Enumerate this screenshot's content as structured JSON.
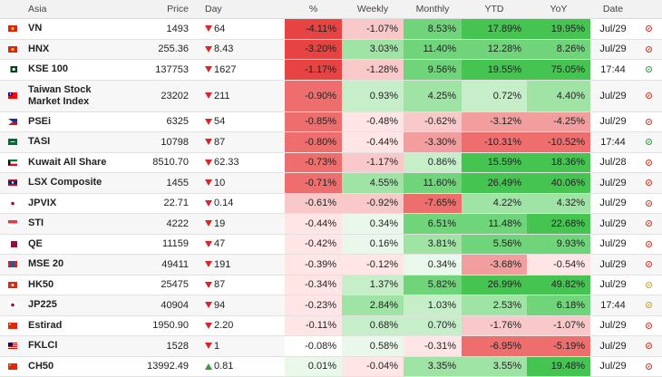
{
  "headers": {
    "name": "Asia",
    "price": "Price",
    "day": "Day",
    "pct": "%",
    "weekly": "Weekly",
    "monthly": "Monthly",
    "ytd": "YTD",
    "yoy": "YoY",
    "date": "Date"
  },
  "rows": [
    {
      "flag": "vn",
      "name": "VN",
      "price": "1493",
      "dir": "down",
      "day": "64",
      "pct": "-4.11%",
      "weekly": "-1.07%",
      "monthly": "8.53%",
      "ytd": "17.89%",
      "yoy": "19.95%",
      "date": "Jul/29",
      "status": "closed"
    },
    {
      "flag": "vn",
      "name": "HNX",
      "price": "255.36",
      "dir": "down",
      "day": "8.43",
      "pct": "-3.20%",
      "weekly": "3.03%",
      "monthly": "11.40%",
      "ytd": "12.28%",
      "yoy": "8.26%",
      "date": "Jul/29",
      "status": "closed"
    },
    {
      "flag": "pk",
      "name": "KSE 100",
      "price": "137753",
      "dir": "down",
      "day": "1627",
      "pct": "-1.17%",
      "weekly": "-1.28%",
      "monthly": "9.56%",
      "ytd": "19.55%",
      "yoy": "75.05%",
      "date": "17:44",
      "status": "open"
    },
    {
      "flag": "tw",
      "name": "Taiwan Stock Market Index",
      "price": "23202",
      "dir": "down",
      "day": "211",
      "pct": "-0.90%",
      "weekly": "0.93%",
      "monthly": "4.25%",
      "ytd": "0.72%",
      "yoy": "4.40%",
      "date": "Jul/29",
      "status": "closed"
    },
    {
      "flag": "ph",
      "name": "PSEi",
      "price": "6325",
      "dir": "down",
      "day": "54",
      "pct": "-0.85%",
      "weekly": "-0.48%",
      "monthly": "-0.62%",
      "ytd": "-3.12%",
      "yoy": "-4.25%",
      "date": "Jul/29",
      "status": "closed"
    },
    {
      "flag": "sa",
      "name": "TASI",
      "price": "10798",
      "dir": "down",
      "day": "87",
      "pct": "-0.80%",
      "weekly": "-0.44%",
      "monthly": "-3.30%",
      "ytd": "-10.31%",
      "yoy": "-10.52%",
      "date": "17:44",
      "status": "open"
    },
    {
      "flag": "kw",
      "name": "Kuwait All Share",
      "price": "8510.70",
      "dir": "down",
      "day": "62.33",
      "pct": "-0.73%",
      "weekly": "-1.17%",
      "monthly": "0.86%",
      "ytd": "15.59%",
      "yoy": "18.36%",
      "date": "Jul/28",
      "status": "closed"
    },
    {
      "flag": "la",
      "name": "LSX Composite",
      "price": "1455",
      "dir": "down",
      "day": "10",
      "pct": "-0.71%",
      "weekly": "4.55%",
      "monthly": "11.60%",
      "ytd": "26.49%",
      "yoy": "40.06%",
      "date": "Jul/29",
      "status": "closed"
    },
    {
      "flag": "jp",
      "name": "JPVIX",
      "price": "22.71",
      "dir": "down",
      "day": "0.14",
      "pct": "-0.61%",
      "weekly": "-0.92%",
      "monthly": "-7.65%",
      "ytd": "4.22%",
      "yoy": "4.32%",
      "date": "Jul/29",
      "status": "closed"
    },
    {
      "flag": "sg",
      "name": "STI",
      "price": "4222",
      "dir": "down",
      "day": "19",
      "pct": "-0.44%",
      "weekly": "0.34%",
      "monthly": "6.51%",
      "ytd": "11.48%",
      "yoy": "22.68%",
      "date": "Jul/29",
      "status": "closed"
    },
    {
      "flag": "qa",
      "name": "QE",
      "price": "11159",
      "dir": "down",
      "day": "47",
      "pct": "-0.42%",
      "weekly": "0.16%",
      "monthly": "3.81%",
      "ytd": "5.56%",
      "yoy": "9.93%",
      "date": "Jul/29",
      "status": "closed"
    },
    {
      "flag": "mn",
      "name": "MSE 20",
      "price": "49411",
      "dir": "down",
      "day": "191",
      "pct": "-0.39%",
      "weekly": "-0.12%",
      "monthly": "0.34%",
      "ytd": "-3.68%",
      "yoy": "-0.54%",
      "date": "Jul/29",
      "status": "closed"
    },
    {
      "flag": "hk",
      "name": "HK50",
      "price": "25475",
      "dir": "down",
      "day": "87",
      "pct": "-0.34%",
      "weekly": "1.37%",
      "monthly": "5.82%",
      "ytd": "26.99%",
      "yoy": "49.82%",
      "date": "Jul/29",
      "status": "pre"
    },
    {
      "flag": "jp",
      "name": "JP225",
      "price": "40904",
      "dir": "down",
      "day": "94",
      "pct": "-0.23%",
      "weekly": "2.84%",
      "monthly": "1.03%",
      "ytd": "2.53%",
      "yoy": "6.18%",
      "date": "17:44",
      "status": "pre"
    },
    {
      "flag": "cn",
      "name": "Estirad",
      "price": "1950.90",
      "dir": "down",
      "day": "2.20",
      "pct": "-0.11%",
      "weekly": "0.68%",
      "monthly": "0.70%",
      "ytd": "-1.76%",
      "yoy": "-1.07%",
      "date": "Jul/29",
      "status": "closed"
    },
    {
      "flag": "my",
      "name": "FKLCI",
      "price": "1528",
      "dir": "down",
      "day": "1",
      "pct": "-0.08%",
      "weekly": "0.58%",
      "monthly": "-0.31%",
      "ytd": "-6.95%",
      "yoy": "-5.19%",
      "date": "Jul/29",
      "status": "closed"
    },
    {
      "flag": "cn",
      "name": "CH50",
      "price": "13992.49",
      "dir": "up",
      "day": "0.81",
      "pct": "0.01%",
      "weekly": "-0.04%",
      "monthly": "3.35%",
      "ytd": "3.55%",
      "yoy": "19.48%",
      "date": "Jul/29",
      "status": "closed"
    }
  ],
  "colors": {
    "neg": [
      "#ffe5e5",
      "#f9c9c9",
      "#f39e9e",
      "#ee6e6e",
      "#e84343"
    ],
    "pos": [
      "#e9f8ea",
      "#c6efc9",
      "#9fe3a5",
      "#6fd47a",
      "#45c452"
    ]
  }
}
